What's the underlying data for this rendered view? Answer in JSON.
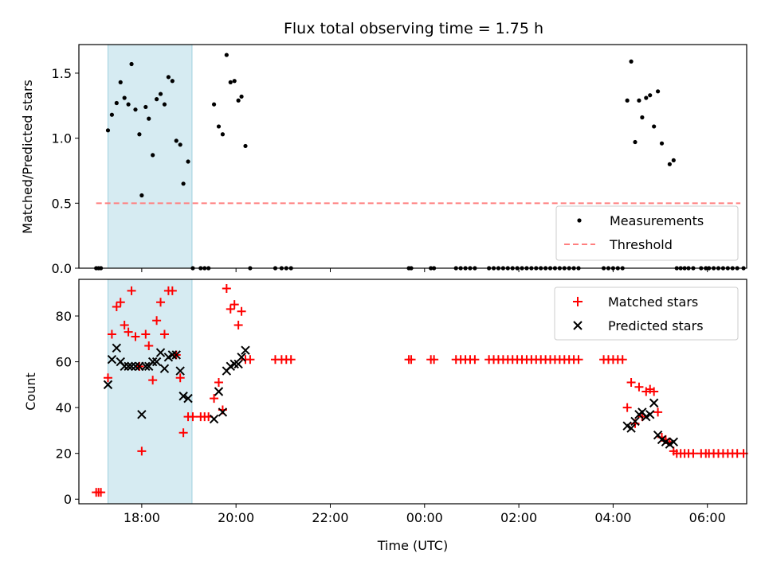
{
  "chart_data": [
    {
      "type": "scatter",
      "title": "Flux total observing time = 1.75 h",
      "ylabel": "Matched/Predicted stars",
      "xlabel": "",
      "ylim": [
        0,
        1.72
      ],
      "xlim": [
        "16:40",
        "06:50"
      ],
      "xticks": [
        "18:00",
        "20:00",
        "22:00",
        "00:00",
        "02:00",
        "04:00",
        "06:00"
      ],
      "yticks": [
        "0.0",
        "0.5",
        "1.0",
        "1.5"
      ],
      "shaded_interval": [
        "17:17",
        "19:04"
      ],
      "shade_color": "#add8e6",
      "legend_position": "lower right",
      "series": [
        {
          "name": "Measurements",
          "style": "dot",
          "color": "#000000",
          "points": [
            [
              "17:02",
              0
            ],
            [
              "17:05",
              0
            ],
            [
              "17:08",
              0
            ],
            [
              "17:17",
              1.06
            ],
            [
              "17:22",
              1.18
            ],
            [
              "17:28",
              1.27
            ],
            [
              "17:33",
              1.43
            ],
            [
              "17:38",
              1.31
            ],
            [
              "17:43",
              1.26
            ],
            [
              "17:47",
              1.57
            ],
            [
              "17:52",
              1.22
            ],
            [
              "17:57",
              1.03
            ],
            [
              "18:00",
              0.56
            ],
            [
              "18:05",
              1.24
            ],
            [
              "18:09",
              1.15
            ],
            [
              "18:14",
              0.87
            ],
            [
              "18:19",
              1.3
            ],
            [
              "18:24",
              1.34
            ],
            [
              "18:29",
              1.26
            ],
            [
              "18:34",
              1.47
            ],
            [
              "18:39",
              1.44
            ],
            [
              "18:44",
              0.98
            ],
            [
              "18:49",
              0.95
            ],
            [
              "18:53",
              0.65
            ],
            [
              "18:59",
              0.82
            ],
            [
              "19:05",
              0
            ],
            [
              "19:15",
              0
            ],
            [
              "19:20",
              0
            ],
            [
              "19:25",
              0
            ],
            [
              "19:32",
              1.26
            ],
            [
              "19:38",
              1.09
            ],
            [
              "19:43",
              1.03
            ],
            [
              "19:48",
              1.64
            ],
            [
              "19:53",
              1.43
            ],
            [
              "19:58",
              1.44
            ],
            [
              "20:03",
              1.29
            ],
            [
              "20:07",
              1.32
            ],
            [
              "20:12",
              0.94
            ],
            [
              "20:18",
              0
            ],
            [
              "20:50",
              0
            ],
            [
              "20:58",
              0
            ],
            [
              "21:04",
              0
            ],
            [
              "21:10",
              0
            ],
            [
              "23:40",
              0
            ],
            [
              "23:43",
              0
            ],
            [
              "00:08",
              0
            ],
            [
              "00:12",
              0
            ],
            [
              "00:40",
              0
            ],
            [
              "00:46",
              0
            ],
            [
              "00:52",
              0
            ],
            [
              "00:58",
              0
            ],
            [
              "01:04",
              0
            ],
            [
              "01:22",
              0
            ],
            [
              "01:28",
              0
            ],
            [
              "01:34",
              0
            ],
            [
              "01:40",
              0
            ],
            [
              "01:46",
              0
            ],
            [
              "01:52",
              0
            ],
            [
              "01:58",
              0
            ],
            [
              "02:04",
              0
            ],
            [
              "02:10",
              0
            ],
            [
              "02:16",
              0
            ],
            [
              "02:22",
              0
            ],
            [
              "02:28",
              0
            ],
            [
              "02:34",
              0
            ],
            [
              "02:40",
              0
            ],
            [
              "02:46",
              0
            ],
            [
              "02:52",
              0
            ],
            [
              "02:58",
              0
            ],
            [
              "03:04",
              0
            ],
            [
              "03:10",
              0
            ],
            [
              "03:16",
              0
            ],
            [
              "03:48",
              0
            ],
            [
              "03:54",
              0
            ],
            [
              "04:00",
              0
            ],
            [
              "04:06",
              0
            ],
            [
              "04:12",
              0
            ],
            [
              "04:18",
              1.29
            ],
            [
              "04:23",
              1.59
            ],
            [
              "04:28",
              0.97
            ],
            [
              "04:33",
              1.29
            ],
            [
              "04:37",
              1.16
            ],
            [
              "04:42",
              1.31
            ],
            [
              "04:47",
              1.33
            ],
            [
              "04:52",
              1.09
            ],
            [
              "04:57",
              1.36
            ],
            [
              "05:02",
              0.96
            ],
            [
              "05:12",
              0.8
            ],
            [
              "05:17",
              0.83
            ],
            [
              "05:21",
              0
            ],
            [
              "05:26",
              0
            ],
            [
              "05:31",
              0
            ],
            [
              "05:36",
              0
            ],
            [
              "05:42",
              0
            ],
            [
              "05:52",
              0
            ],
            [
              "05:58",
              0
            ],
            [
              "06:02",
              0
            ],
            [
              "06:08",
              0
            ],
            [
              "06:14",
              0
            ],
            [
              "06:20",
              0
            ],
            [
              "06:26",
              0
            ],
            [
              "06:32",
              0
            ],
            [
              "06:38",
              0
            ],
            [
              "06:46",
              0
            ]
          ]
        },
        {
          "name": "Threshold",
          "style": "dashed-line",
          "color": "#ff7f7f",
          "points": [
            [
              "17:02",
              0.5
            ],
            [
              "06:42",
              0.5
            ]
          ]
        }
      ]
    },
    {
      "type": "scatter",
      "title": "",
      "ylabel": "Count",
      "xlabel": "Time (UTC)",
      "ylim": [
        -2,
        96
      ],
      "xlim": [
        "16:40",
        "06:50"
      ],
      "xticks": [
        "18:00",
        "20:00",
        "22:00",
        "00:00",
        "02:00",
        "04:00",
        "06:00"
      ],
      "yticks": [
        "0",
        "20",
        "40",
        "60",
        "80"
      ],
      "shaded_interval": [
        "17:17",
        "19:04"
      ],
      "shade_color": "#add8e6",
      "legend_position": "upper right",
      "series": [
        {
          "name": "Matched stars",
          "style": "plus",
          "color": "#ff0000",
          "points": [
            [
              "17:02",
              3
            ],
            [
              "17:05",
              3
            ],
            [
              "17:08",
              3
            ],
            [
              "17:17",
              53
            ],
            [
              "17:22",
              72
            ],
            [
              "17:28",
              84
            ],
            [
              "17:33",
              86
            ],
            [
              "17:38",
              76
            ],
            [
              "17:43",
              73
            ],
            [
              "17:47",
              91
            ],
            [
              "17:52",
              71
            ],
            [
              "17:57",
              58
            ],
            [
              "18:00",
              21
            ],
            [
              "18:05",
              72
            ],
            [
              "18:09",
              67
            ],
            [
              "18:14",
              52
            ],
            [
              "18:19",
              78
            ],
            [
              "18:24",
              86
            ],
            [
              "18:29",
              72
            ],
            [
              "18:34",
              91
            ],
            [
              "18:39",
              91
            ],
            [
              "18:44",
              63
            ],
            [
              "18:49",
              53
            ],
            [
              "18:53",
              29
            ],
            [
              "18:59",
              36
            ],
            [
              "19:05",
              36
            ],
            [
              "19:15",
              36
            ],
            [
              "19:20",
              36
            ],
            [
              "19:25",
              36
            ],
            [
              "19:32",
              44
            ],
            [
              "19:38",
              51
            ],
            [
              "19:43",
              39
            ],
            [
              "19:48",
              92
            ],
            [
              "19:53",
              83
            ],
            [
              "19:58",
              85
            ],
            [
              "20:03",
              76
            ],
            [
              "20:07",
              82
            ],
            [
              "20:12",
              61
            ],
            [
              "20:18",
              61
            ],
            [
              "20:50",
              61
            ],
            [
              "20:58",
              61
            ],
            [
              "21:04",
              61
            ],
            [
              "21:10",
              61
            ],
            [
              "23:40",
              61
            ],
            [
              "23:43",
              61
            ],
            [
              "00:08",
              61
            ],
            [
              "00:12",
              61
            ],
            [
              "00:40",
              61
            ],
            [
              "00:46",
              61
            ],
            [
              "00:52",
              61
            ],
            [
              "00:58",
              61
            ],
            [
              "01:04",
              61
            ],
            [
              "01:22",
              61
            ],
            [
              "01:28",
              61
            ],
            [
              "01:34",
              61
            ],
            [
              "01:40",
              61
            ],
            [
              "01:46",
              61
            ],
            [
              "01:52",
              61
            ],
            [
              "01:58",
              61
            ],
            [
              "02:04",
              61
            ],
            [
              "02:10",
              61
            ],
            [
              "02:16",
              61
            ],
            [
              "02:22",
              61
            ],
            [
              "02:28",
              61
            ],
            [
              "02:34",
              61
            ],
            [
              "02:40",
              61
            ],
            [
              "02:46",
              61
            ],
            [
              "02:52",
              61
            ],
            [
              "02:58",
              61
            ],
            [
              "03:04",
              61
            ],
            [
              "03:10",
              61
            ],
            [
              "03:16",
              61
            ],
            [
              "03:48",
              61
            ],
            [
              "03:54",
              61
            ],
            [
              "04:00",
              61
            ],
            [
              "04:06",
              61
            ],
            [
              "04:12",
              61
            ],
            [
              "04:18",
              40
            ],
            [
              "04:23",
              51
            ],
            [
              "04:28",
              33
            ],
            [
              "04:33",
              49
            ],
            [
              "04:37",
              36
            ],
            [
              "04:42",
              47
            ],
            [
              "04:47",
              48
            ],
            [
              "04:52",
              47
            ],
            [
              "04:57",
              38
            ],
            [
              "05:02",
              27
            ],
            [
              "05:07",
              26
            ],
            [
              "05:12",
              25
            ],
            [
              "05:17",
              21
            ],
            [
              "05:21",
              20
            ],
            [
              "05:26",
              20
            ],
            [
              "05:31",
              20
            ],
            [
              "05:36",
              20
            ],
            [
              "05:42",
              20
            ],
            [
              "05:52",
              20
            ],
            [
              "05:58",
              20
            ],
            [
              "06:02",
              20
            ],
            [
              "06:08",
              20
            ],
            [
              "06:14",
              20
            ],
            [
              "06:20",
              20
            ],
            [
              "06:26",
              20
            ],
            [
              "06:32",
              20
            ],
            [
              "06:38",
              20
            ],
            [
              "06:46",
              20
            ]
          ]
        },
        {
          "name": "Predicted stars",
          "style": "x",
          "color": "#000000",
          "points": [
            [
              "17:17",
              50
            ],
            [
              "17:22",
              61
            ],
            [
              "17:28",
              66
            ],
            [
              "17:33",
              60
            ],
            [
              "17:38",
              58
            ],
            [
              "17:43",
              58
            ],
            [
              "17:47",
              58
            ],
            [
              "17:52",
              58
            ],
            [
              "17:57",
              58
            ],
            [
              "18:00",
              37
            ],
            [
              "18:05",
              58
            ],
            [
              "18:09",
              58
            ],
            [
              "18:14",
              60
            ],
            [
              "18:19",
              60
            ],
            [
              "18:24",
              64
            ],
            [
              "18:29",
              57
            ],
            [
              "18:34",
              62
            ],
            [
              "18:39",
              63
            ],
            [
              "18:44",
              63
            ],
            [
              "18:49",
              56
            ],
            [
              "18:53",
              45
            ],
            [
              "18:59",
              44
            ],
            [
              "19:32",
              35
            ],
            [
              "19:38",
              47
            ],
            [
              "19:43",
              38
            ],
            [
              "19:48",
              56
            ],
            [
              "19:53",
              58
            ],
            [
              "19:58",
              59
            ],
            [
              "20:03",
              59
            ],
            [
              "20:07",
              62
            ],
            [
              "20:12",
              65
            ],
            [
              "04:18",
              32
            ],
            [
              "04:23",
              31
            ],
            [
              "04:28",
              34
            ],
            [
              "04:33",
              37
            ],
            [
              "04:37",
              38
            ],
            [
              "04:42",
              36
            ],
            [
              "04:47",
              37
            ],
            [
              "04:52",
              42
            ],
            [
              "04:57",
              28
            ],
            [
              "05:02",
              26
            ],
            [
              "05:07",
              25
            ],
            [
              "05:12",
              24
            ],
            [
              "05:17",
              25
            ]
          ]
        }
      ]
    }
  ]
}
